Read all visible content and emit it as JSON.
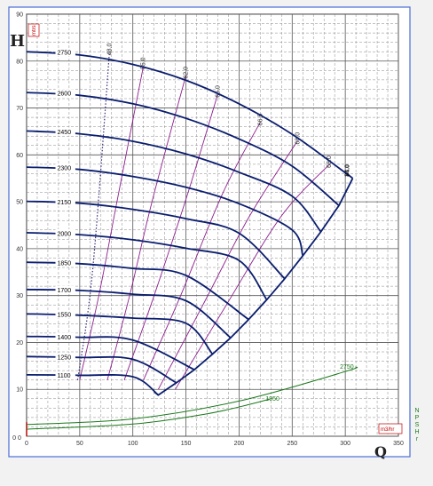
{
  "chart_data": {
    "type": "line",
    "title": "",
    "xlabel": "Q",
    "ylabel": "H",
    "x_unit": "m3/hr",
    "y_unit": "mtrs",
    "right_axis_label": "NPSHr",
    "xlim": [
      0,
      350
    ],
    "ylim": [
      0,
      90
    ],
    "x_ticks": [
      0,
      50,
      100,
      150,
      200,
      250,
      300,
      350
    ],
    "y_ticks": [
      0,
      10,
      20,
      30,
      40,
      50,
      60,
      70,
      80,
      90
    ],
    "y_zero_label": "0 0",
    "grid": true,
    "series": [
      {
        "name": "2750",
        "x": [
          0,
          50,
          100,
          150,
          200,
          250,
          300,
          307
        ],
        "y": [
          82,
          81.3,
          79.3,
          75.9,
          70.9,
          64.4,
          56.2,
          55
        ]
      },
      {
        "name": "2600",
        "x": [
          0,
          50,
          100,
          150,
          200,
          250,
          294
        ],
        "y": [
          73.3,
          72.7,
          70.9,
          67.8,
          63.4,
          57.6,
          49.2
        ]
      },
      {
        "name": "2450",
        "x": [
          0,
          50,
          100,
          150,
          200,
          250,
          277
        ],
        "y": [
          65.1,
          64.5,
          62.9,
          60.2,
          56.3,
          51.2,
          43.6
        ]
      },
      {
        "name": "2300",
        "x": [
          0,
          50,
          100,
          150,
          200,
          250,
          260
        ],
        "y": [
          57.4,
          56.9,
          55.4,
          53.1,
          49.6,
          44,
          38.5
        ]
      },
      {
        "name": "2150",
        "x": [
          0,
          50,
          100,
          150,
          200,
          243
        ],
        "y": [
          50.1,
          49.7,
          48.4,
          46.4,
          43.3,
          33.6
        ]
      },
      {
        "name": "2000",
        "x": [
          0,
          50,
          100,
          150,
          200,
          226
        ],
        "y": [
          43.4,
          43,
          41.9,
          40.1,
          37.5,
          29.1
        ]
      },
      {
        "name": "1850",
        "x": [
          0,
          50,
          100,
          150,
          209
        ],
        "y": [
          37.1,
          36.8,
          35.8,
          34.3,
          24.9
        ]
      },
      {
        "name": "1700",
        "x": [
          0,
          50,
          100,
          150,
          192
        ],
        "y": [
          31.3,
          31.1,
          30.3,
          28.9,
          21
        ]
      },
      {
        "name": "1550",
        "x": [
          0,
          50,
          100,
          150,
          175
        ],
        "y": [
          26.1,
          25.8,
          25.2,
          24.1,
          17.5
        ]
      },
      {
        "name": "1400",
        "x": [
          0,
          50,
          100,
          158
        ],
        "y": [
          21.3,
          21.1,
          20.5,
          14.2
        ]
      },
      {
        "name": "1250",
        "x": [
          0,
          50,
          100,
          141
        ],
        "y": [
          17,
          16.8,
          16.4,
          11.4
        ]
      },
      {
        "name": "1100",
        "x": [
          0,
          50,
          100,
          124
        ],
        "y": [
          13.1,
          13,
          12.7,
          8.8
        ]
      }
    ],
    "operating_limit": {
      "x": [
        120,
        124,
        141,
        158,
        175,
        192,
        209,
        226,
        243,
        260,
        277,
        294,
        307
      ],
      "y": [
        9.5,
        8.8,
        11.4,
        14.2,
        17.5,
        21,
        24.9,
        29.1,
        33.6,
        38.5,
        43.6,
        49.2,
        55
      ]
    },
    "efficiency_lines": [
      {
        "name": "48.0",
        "x": [
          48,
          62,
          78
        ],
        "y": [
          12,
          35,
          82
        ],
        "style": "dotted"
      },
      {
        "name": "55.0",
        "x": [
          50,
          68,
          85,
          110
        ],
        "y": [
          12,
          30,
          50,
          79
        ]
      },
      {
        "name": "62.0",
        "x": [
          76,
          97,
          118,
          150
        ],
        "y": [
          12,
          30,
          50,
          77
        ]
      },
      {
        "name": "65.0",
        "x": [
          92,
          120,
          152,
          180
        ],
        "y": [
          12,
          30,
          52,
          73
        ]
      },
      {
        "name": "66.5",
        "x": [
          110,
          145,
          185,
          220
        ],
        "y": [
          12,
          30,
          52,
          67
        ]
      },
      {
        "name": "68.0",
        "x": [
          124,
          166,
          210,
          255
        ],
        "y": [
          10,
          28,
          47,
          63
        ]
      },
      {
        "name": "68.0",
        "x": [
          140,
          188,
          240,
          285
        ],
        "y": [
          10,
          28,
          47,
          58
        ]
      }
    ],
    "bep_label": "84.0",
    "npsh_curves": [
      {
        "name": "2750",
        "x": [
          0,
          100,
          200,
          300,
          310
        ],
        "y": [
          2.5,
          3.7,
          7.5,
          13.8,
          14.8
        ]
      },
      {
        "name": "1950",
        "x": [
          0,
          100,
          170,
          210,
          230
        ],
        "y": [
          1.5,
          2.6,
          4.8,
          6.8,
          8
        ]
      }
    ]
  }
}
